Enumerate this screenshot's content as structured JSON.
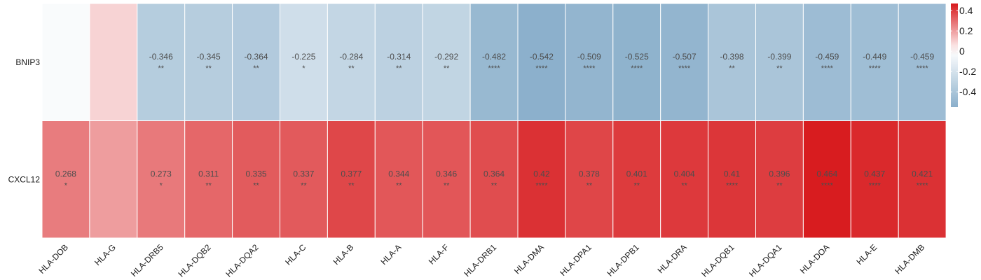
{
  "chart_data": {
    "type": "heatmap",
    "rows": [
      "BNIP3",
      "CXCL12"
    ],
    "columns": [
      "HLA-DOB",
      "HLA-G",
      "HLA-DRB5",
      "HLA-DQB2",
      "HLA-DQA2",
      "HLA-C",
      "HLA-B",
      "HLA-A",
      "HLA-F",
      "HLA-DRB1",
      "HLA-DMA",
      "HLA-DPA1",
      "HLA-DPB1",
      "HLA-DRA",
      "HLA-DQB1",
      "HLA-DQA1",
      "HLA-DOA",
      "HLA-E",
      "HLA-DMB"
    ],
    "values": [
      [
        -0.03,
        0.09,
        -0.346,
        -0.345,
        -0.364,
        -0.225,
        -0.284,
        -0.314,
        -0.292,
        -0.482,
        -0.542,
        -0.509,
        -0.525,
        -0.507,
        -0.398,
        -0.399,
        -0.459,
        -0.449,
        -0.459
      ],
      [
        0.268,
        0.2,
        0.273,
        0.311,
        0.335,
        0.337,
        0.377,
        0.344,
        0.346,
        0.364,
        0.42,
        0.378,
        0.401,
        0.404,
        0.41,
        0.396,
        0.464,
        0.437,
        0.421
      ]
    ],
    "labels": [
      [
        "",
        "",
        "-0.346",
        "-0.345",
        "-0.364",
        "-0.225",
        "-0.284",
        "-0.314",
        "-0.292",
        "-0.482",
        "-0.542",
        "-0.509",
        "-0.525",
        "-0.507",
        "-0.398",
        "-0.399",
        "-0.459",
        "-0.449",
        "-0.459"
      ],
      [
        "0.268",
        "",
        "0.273",
        "0.311",
        "0.335",
        "0.337",
        "0.377",
        "0.344",
        "0.346",
        "0.364",
        "0.42",
        "0.378",
        "0.401",
        "0.404",
        "0.41",
        "0.396",
        "0.464",
        "0.437",
        "0.421"
      ]
    ],
    "significance": [
      [
        "",
        "",
        "**",
        "**",
        "**",
        "*",
        "**",
        "**",
        "**",
        "****",
        "****",
        "****",
        "****",
        "****",
        "**",
        "**",
        "****",
        "****",
        "****"
      ],
      [
        "*",
        "",
        "*",
        "**",
        "**",
        "**",
        "**",
        "**",
        "**",
        "**",
        "****",
        "**",
        "**",
        "**",
        "****",
        "**",
        "****",
        "****",
        "****"
      ]
    ],
    "color_scale": {
      "low_color": "#8aafcb",
      "mid_color": "#ffffff",
      "high_color": "#d7191c",
      "limits": [
        -0.55,
        0.47
      ],
      "ticks": [
        "0.4",
        "0.2",
        "0",
        "-0.2",
        "-0.4"
      ],
      "tick_values": [
        0.4,
        0.2,
        0,
        -0.2,
        -0.4
      ]
    },
    "legend_position": "right",
    "grid": false
  }
}
